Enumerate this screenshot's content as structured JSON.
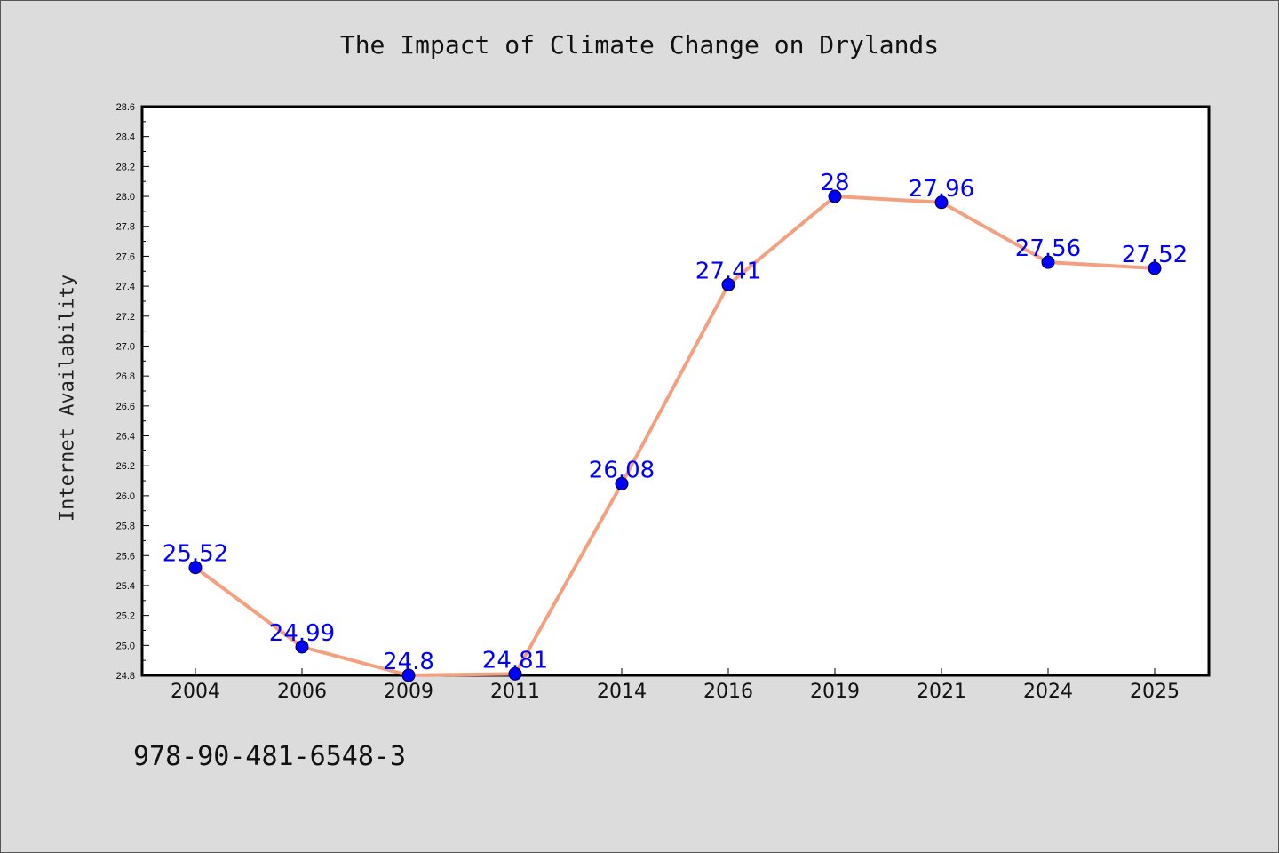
{
  "chart_data": {
    "type": "line",
    "title": "The Impact of Climate Change on Drylands",
    "xlabel": "",
    "ylabel": "Internet Availability",
    "categories": [
      "2004",
      "2006",
      "2009",
      "2011",
      "2014",
      "2016",
      "2019",
      "2021",
      "2024",
      "2025"
    ],
    "series": [
      {
        "values": [
          25.52,
          24.99,
          24.8,
          24.81,
          26.08,
          27.41,
          28,
          27.96,
          27.56,
          27.52
        ],
        "data_labels": [
          "25.52",
          "24.99",
          "24.8",
          "24.81",
          "26.08",
          "27.41",
          "28",
          "27.96",
          "27.56",
          "27.52"
        ]
      }
    ],
    "ylim": [
      24.8,
      28.6
    ],
    "yticks": [
      "24.8",
      "25.0",
      "25.2",
      "25.4",
      "25.6",
      "25.8",
      "26.0",
      "26.2",
      "26.4",
      "26.6",
      "26.8",
      "27.0",
      "27.2",
      "27.4",
      "27.6",
      "27.8",
      "28.0",
      "28.2",
      "28.4",
      "28.6"
    ],
    "grid": false,
    "legend": "none",
    "colors": {
      "line": "#f4a07f",
      "marker": "#0000ff",
      "data_label": "#0000ff",
      "plot_background": "#ffffff",
      "figure_background": "#dcdcdc"
    }
  },
  "footer": {
    "code": "978-90-481-6548-3"
  }
}
